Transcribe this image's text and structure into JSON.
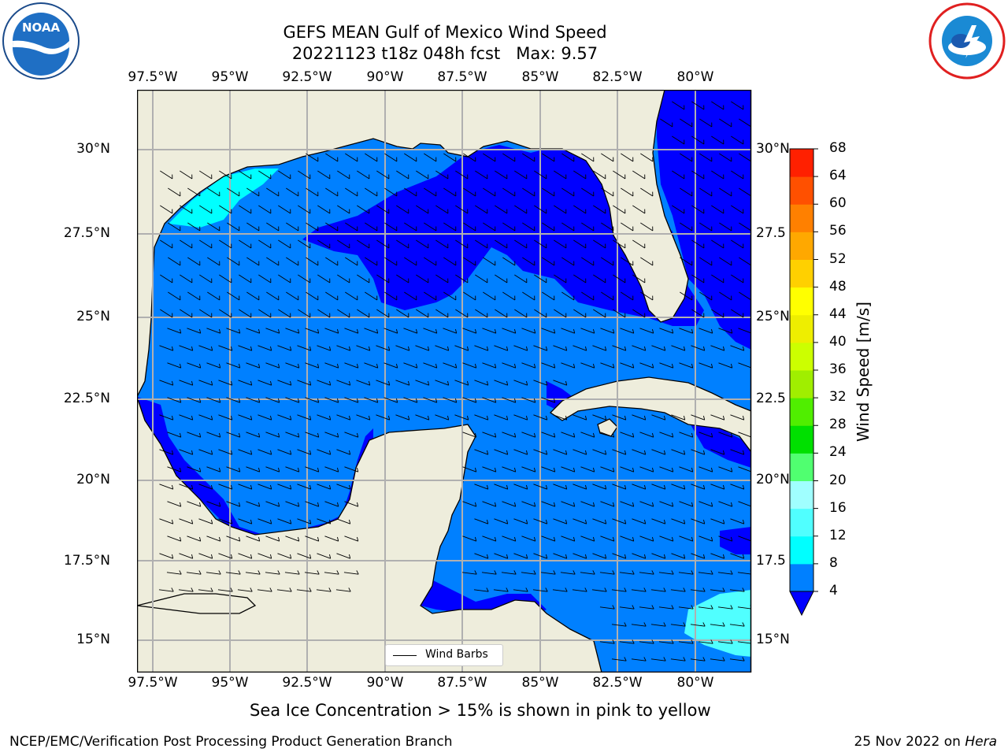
{
  "title": {
    "line1": "GEFS MEAN Gulf of Mexico Wind Speed",
    "line2": "20221123 t18z 048h fcst   Max: 9.57"
  },
  "logos": {
    "left": "noara-logo",
    "right": "nws-logo",
    "left_text": "NOAA",
    "left_ring": "NATIONAL OCEANIC AND ATMOSPHERIC ADMINISTRATION · U.S. DEPARTMENT OF COMMERCE",
    "right_ring": "NATIONAL WEATHER SERVICE"
  },
  "map": {
    "lon_labels": [
      "97.5°W",
      "95°W",
      "92.5°W",
      "90°W",
      "87.5°W",
      "85°W",
      "82.5°W",
      "80°W"
    ],
    "lat_labels": [
      "30°N",
      "27.5°N",
      "25°N",
      "22.5°N",
      "20°N",
      "17.5°N",
      "15°N"
    ],
    "lat_labels_right": [
      "30°N",
      "27.5",
      "25°N",
      "22.5",
      "20°N",
      "17.5",
      "15°N"
    ],
    "legend": "Wind Barbs",
    "colors": {
      "land": "#eeeddc",
      "level_0_4": "#0000ff",
      "level_4_8": "#0080ff",
      "level_8_12": "#00ffff",
      "level_12_16": "#50ffff",
      "grid": "#b0b0b0"
    }
  },
  "colorbar": {
    "label": "Wind Speed [m/s]",
    "ticks": [
      "68",
      "64",
      "60",
      "56",
      "52",
      "48",
      "44",
      "40",
      "36",
      "32",
      "28",
      "24",
      "20",
      "16",
      "12",
      "8",
      "4"
    ],
    "colors": [
      "#0000ff",
      "#0080ff",
      "#00ffff",
      "#50ffff",
      "#a0ffff",
      "#50ff70",
      "#00e000",
      "#50ee00",
      "#a0ee00",
      "#ccff00",
      "#eeee00",
      "#ffff00",
      "#ffd000",
      "#ffa800",
      "#ff8000",
      "#ff5000",
      "#ff2000",
      "#ff0000"
    ]
  },
  "notes": {
    "sea_ice": "Sea Ice Concentration > 15% is shown in pink to yellow",
    "footer_left": "NCEP/EMC/Verification Post Processing Product Generation Branch",
    "footer_right_date": "25 Nov 2022 on ",
    "footer_right_machine": "Hera"
  }
}
